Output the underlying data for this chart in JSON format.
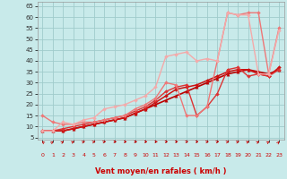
{
  "xlabel": "Vent moyen/en rafales ( km/h )",
  "xlim": [
    -0.5,
    23.5
  ],
  "ylim": [
    4,
    67
  ],
  "yticks": [
    5,
    10,
    15,
    20,
    25,
    30,
    35,
    40,
    45,
    50,
    55,
    60,
    65
  ],
  "xticks": [
    0,
    1,
    2,
    3,
    4,
    5,
    6,
    7,
    8,
    9,
    10,
    11,
    12,
    13,
    14,
    15,
    16,
    17,
    18,
    19,
    20,
    21,
    22,
    23
  ],
  "bg_color": "#c8eaea",
  "grid_color": "#a0cccc",
  "lines": [
    {
      "x": [
        0,
        1,
        2,
        3,
        4,
        5,
        6,
        7,
        8,
        9,
        10,
        11,
        12,
        13,
        14,
        15,
        16,
        17,
        18,
        19,
        20,
        21,
        22,
        23
      ],
      "y": [
        8,
        8,
        8,
        9,
        10,
        11,
        12,
        13,
        14,
        16,
        18,
        20,
        22,
        24,
        26,
        28,
        30,
        32,
        34,
        35,
        36,
        35,
        34,
        36
      ],
      "color": "#bb0000",
      "marker": "^",
      "ms": 2.5,
      "lw": 1.2
    },
    {
      "x": [
        0,
        1,
        2,
        3,
        4,
        5,
        6,
        7,
        8,
        9,
        10,
        11,
        12,
        13,
        14,
        15,
        16,
        17,
        18,
        19,
        20,
        21,
        22,
        23
      ],
      "y": [
        8,
        8,
        8,
        9,
        10,
        11,
        12,
        13,
        14,
        16,
        18,
        21,
        24,
        27,
        28,
        29,
        31,
        33,
        35,
        36,
        36,
        34,
        33,
        37
      ],
      "color": "#cc1111",
      "marker": "D",
      "ms": 2.0,
      "lw": 1.1
    },
    {
      "x": [
        0,
        1,
        2,
        3,
        4,
        5,
        6,
        7,
        8,
        9,
        10,
        11,
        12,
        13,
        14,
        15,
        16,
        17,
        18,
        19,
        20,
        21,
        22,
        23
      ],
      "y": [
        8,
        8,
        9,
        10,
        11,
        12,
        13,
        14,
        15,
        17,
        19,
        22,
        26,
        28,
        29,
        15,
        19,
        25,
        36,
        37,
        33,
        34,
        33,
        36
      ],
      "color": "#dd3333",
      "marker": "D",
      "ms": 2.0,
      "lw": 1.0
    },
    {
      "x": [
        0,
        1,
        2,
        3,
        4,
        5,
        6,
        7,
        8,
        9,
        10,
        11,
        12,
        13,
        14,
        15,
        16,
        17,
        18,
        19,
        20,
        21,
        22,
        23
      ],
      "y": [
        15,
        12,
        11,
        11,
        12,
        12,
        13,
        14,
        15,
        18,
        20,
        23,
        30,
        29,
        15,
        15,
        19,
        40,
        62,
        61,
        62,
        62,
        34,
        55
      ],
      "color": "#ee7777",
      "marker": "D",
      "ms": 2.0,
      "lw": 1.0
    },
    {
      "x": [
        0,
        1,
        2,
        3,
        4,
        5,
        6,
        7,
        8,
        9,
        10,
        11,
        12,
        13,
        14,
        15,
        16,
        17,
        18,
        19,
        20,
        21,
        22,
        23
      ],
      "y": [
        8,
        8,
        12,
        11,
        13,
        14,
        18,
        19,
        20,
        22,
        24,
        28,
        42,
        43,
        44,
        40,
        41,
        40,
        62,
        61,
        61,
        34,
        34,
        54
      ],
      "color": "#f4aaaa",
      "marker": "D",
      "ms": 2.0,
      "lw": 1.0
    }
  ],
  "arrow_angles_deg": [
    195,
    165,
    158,
    152,
    145,
    140,
    135,
    92,
    90,
    90,
    100,
    102,
    110,
    115,
    120,
    120,
    130,
    133,
    140,
    145,
    150,
    158,
    163,
    168
  ]
}
